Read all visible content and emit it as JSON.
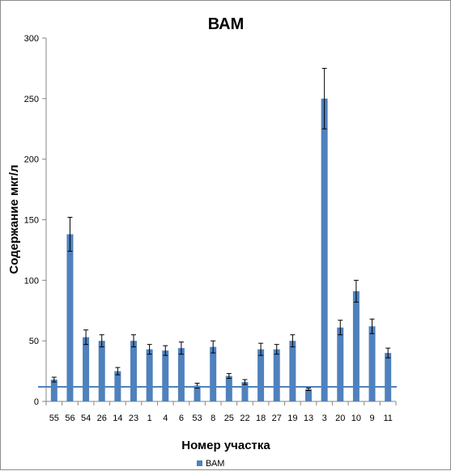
{
  "chart_data": {
    "type": "bar",
    "title": "ВАМ",
    "xlabel": "Номер участка",
    "ylabel": "Содержание мкг/л",
    "ylim": [
      0,
      300
    ],
    "yticks": [
      "0",
      "50",
      "100",
      "150",
      "200",
      "250",
      "300"
    ],
    "grid": false,
    "legend_position": "bottom",
    "categories": [
      "55",
      "56",
      "54",
      "26",
      "14",
      "23",
      "1",
      "4",
      "6",
      "53",
      "8",
      "25",
      "22",
      "18",
      "27",
      "19",
      "13",
      "3",
      "20",
      "10",
      "9",
      "11"
    ],
    "series": [
      {
        "name": "ВАМ",
        "color": "#4f81bd",
        "values": [
          18,
          138,
          53,
          50,
          25,
          50,
          43,
          42,
          44,
          13,
          45,
          21,
          16,
          43,
          43,
          50,
          10,
          250,
          61,
          91,
          62,
          40
        ],
        "errors": [
          2,
          14,
          6,
          5,
          3,
          5,
          4,
          4,
          5,
          2,
          5,
          2,
          2,
          5,
          4,
          5,
          1,
          25,
          6,
          9,
          6,
          4
        ]
      }
    ],
    "reference_line": {
      "value": 12,
      "color": "#4f81bd"
    }
  }
}
